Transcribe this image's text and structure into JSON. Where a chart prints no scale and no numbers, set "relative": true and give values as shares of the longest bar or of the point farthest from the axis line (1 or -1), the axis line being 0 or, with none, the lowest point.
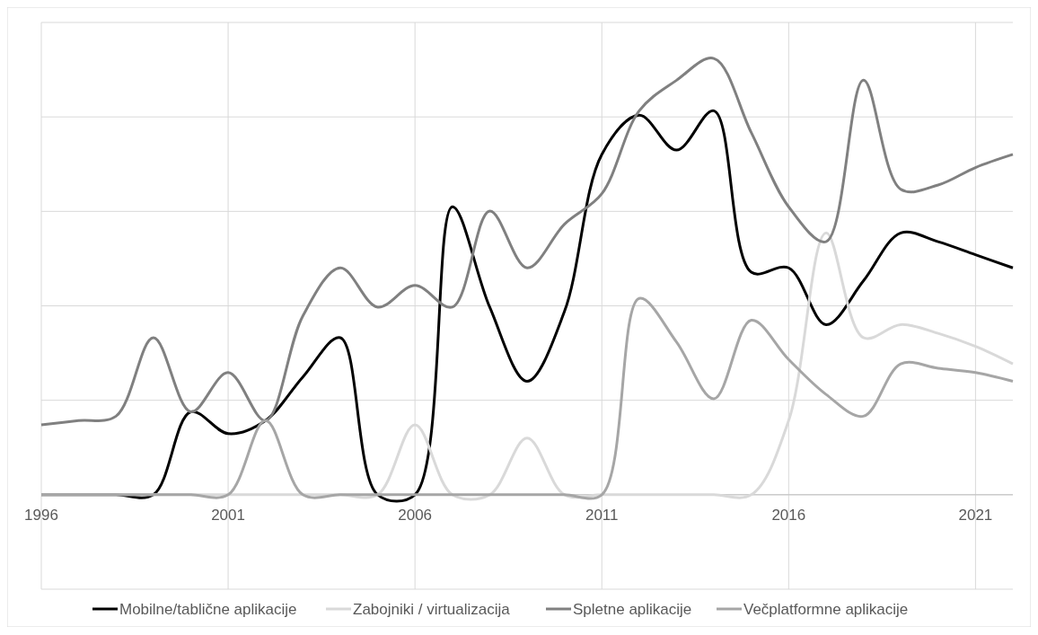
{
  "chart_data": {
    "type": "line",
    "relative": true,
    "x": [
      1996,
      1997,
      1998,
      1999,
      2000,
      2001,
      2002,
      2003,
      2004,
      2005,
      2006,
      2007,
      2008,
      2009,
      2010,
      2011,
      2012,
      2013,
      2014,
      2015,
      2016,
      2017,
      2018,
      2019,
      2020,
      2021,
      2022
    ],
    "xlim": [
      1996,
      2022
    ],
    "xticks": [
      1996,
      2001,
      2006,
      2011,
      2016,
      2021
    ],
    "grid": true,
    "legend": "bottom",
    "series": [
      {
        "name": "Mobilne/tablične aplikacije",
        "color": "#000000",
        "values": [
          0,
          0,
          0,
          0,
          0.19,
          0.14,
          0.17,
          0.27,
          0.36,
          0,
          0,
          0.66,
          0.43,
          0.26,
          0.42,
          0.78,
          0.87,
          0.79,
          0.88,
          0.51,
          0.52,
          0.39,
          0.49,
          0.6,
          0.58,
          0.55,
          0.52
        ]
      },
      {
        "name": "Zabojniki / virtualizacija",
        "color": "#d9d9d9",
        "values": [
          0,
          0,
          0,
          0,
          0,
          0,
          0,
          0,
          0,
          0,
          0.16,
          0,
          0,
          0.13,
          0,
          0,
          0,
          0,
          0,
          0,
          0.17,
          0.6,
          0.36,
          0.39,
          0.37,
          0.34,
          0.3
        ]
      },
      {
        "name": "Spletne aplikacije",
        "color": "#808080",
        "values": [
          0.16,
          0.17,
          0.18,
          0.36,
          0.19,
          0.28,
          0.17,
          0.41,
          0.52,
          0.43,
          0.48,
          0.43,
          0.65,
          0.52,
          0.62,
          0.69,
          0.88,
          0.95,
          1,
          0.83,
          0.66,
          0.58,
          0.95,
          0.7,
          0.71,
          0.75,
          0.78
        ]
      },
      {
        "name": "Večplatformne aplikacije",
        "color": "#a6a6a6",
        "values": [
          0,
          0,
          0,
          0,
          0,
          0,
          0.17,
          0,
          0,
          0,
          0,
          0,
          0,
          0,
          0,
          0,
          0.45,
          0.35,
          0.22,
          0.4,
          0.31,
          0.23,
          0.18,
          0.3,
          0.29,
          0.28,
          0.26
        ]
      }
    ]
  }
}
